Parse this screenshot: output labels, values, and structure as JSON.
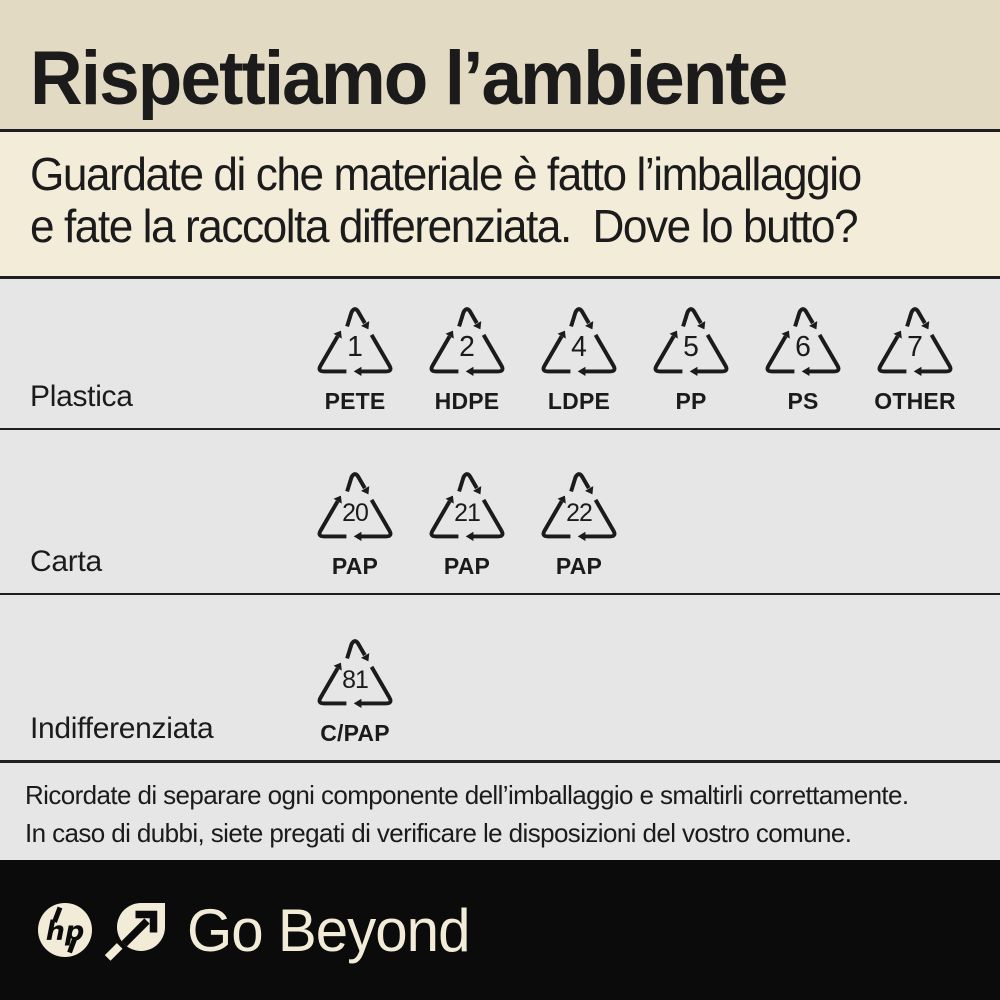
{
  "colors": {
    "band1_bg": "#e3dac3",
    "band2_bg": "#f2ecd9",
    "rows_bg": "#e6e6e6",
    "divider": "#1f1f1f",
    "text": "#1b1b1b",
    "footer_bg": "#0b0b0b",
    "footer_fg": "#f1ebd8",
    "symbol_stroke": "#1b1b1b"
  },
  "header": {
    "title": "Rispettiamo l’ambiente"
  },
  "subtitle": {
    "line1": "Guardate di che materiale è fatto l’imballaggio",
    "line2": "e fate la raccolta differenziata.  Dove lo butto?"
  },
  "material_rows": [
    {
      "label": "Plastica",
      "symbols": [
        {
          "code": "1",
          "material": "PETE"
        },
        {
          "code": "2",
          "material": "HDPE"
        },
        {
          "code": "4",
          "material": "LDPE"
        },
        {
          "code": "5",
          "material": "PP"
        },
        {
          "code": "6",
          "material": "PS"
        },
        {
          "code": "7",
          "material": "OTHER"
        }
      ]
    },
    {
      "label": "Carta",
      "symbols": [
        {
          "code": "20",
          "material": "PAP"
        },
        {
          "code": "21",
          "material": "PAP"
        },
        {
          "code": "22",
          "material": "PAP"
        }
      ]
    },
    {
      "label": "Indifferenziata",
      "symbols": [
        {
          "code": "81",
          "material": "C/PAP"
        }
      ]
    }
  ],
  "note": {
    "line1": "Ricordate di separare ogni componente dell’imballaggio e smaltirli correttamente.",
    "line2": "In caso di dubbi, siete pregati di verificare le disposizioni del vostro comune."
  },
  "footer": {
    "brand": "hp",
    "tagline": "Go Beyond",
    "icons": [
      "hp-circle-logo-icon",
      "leaf-arrow-icon"
    ]
  }
}
